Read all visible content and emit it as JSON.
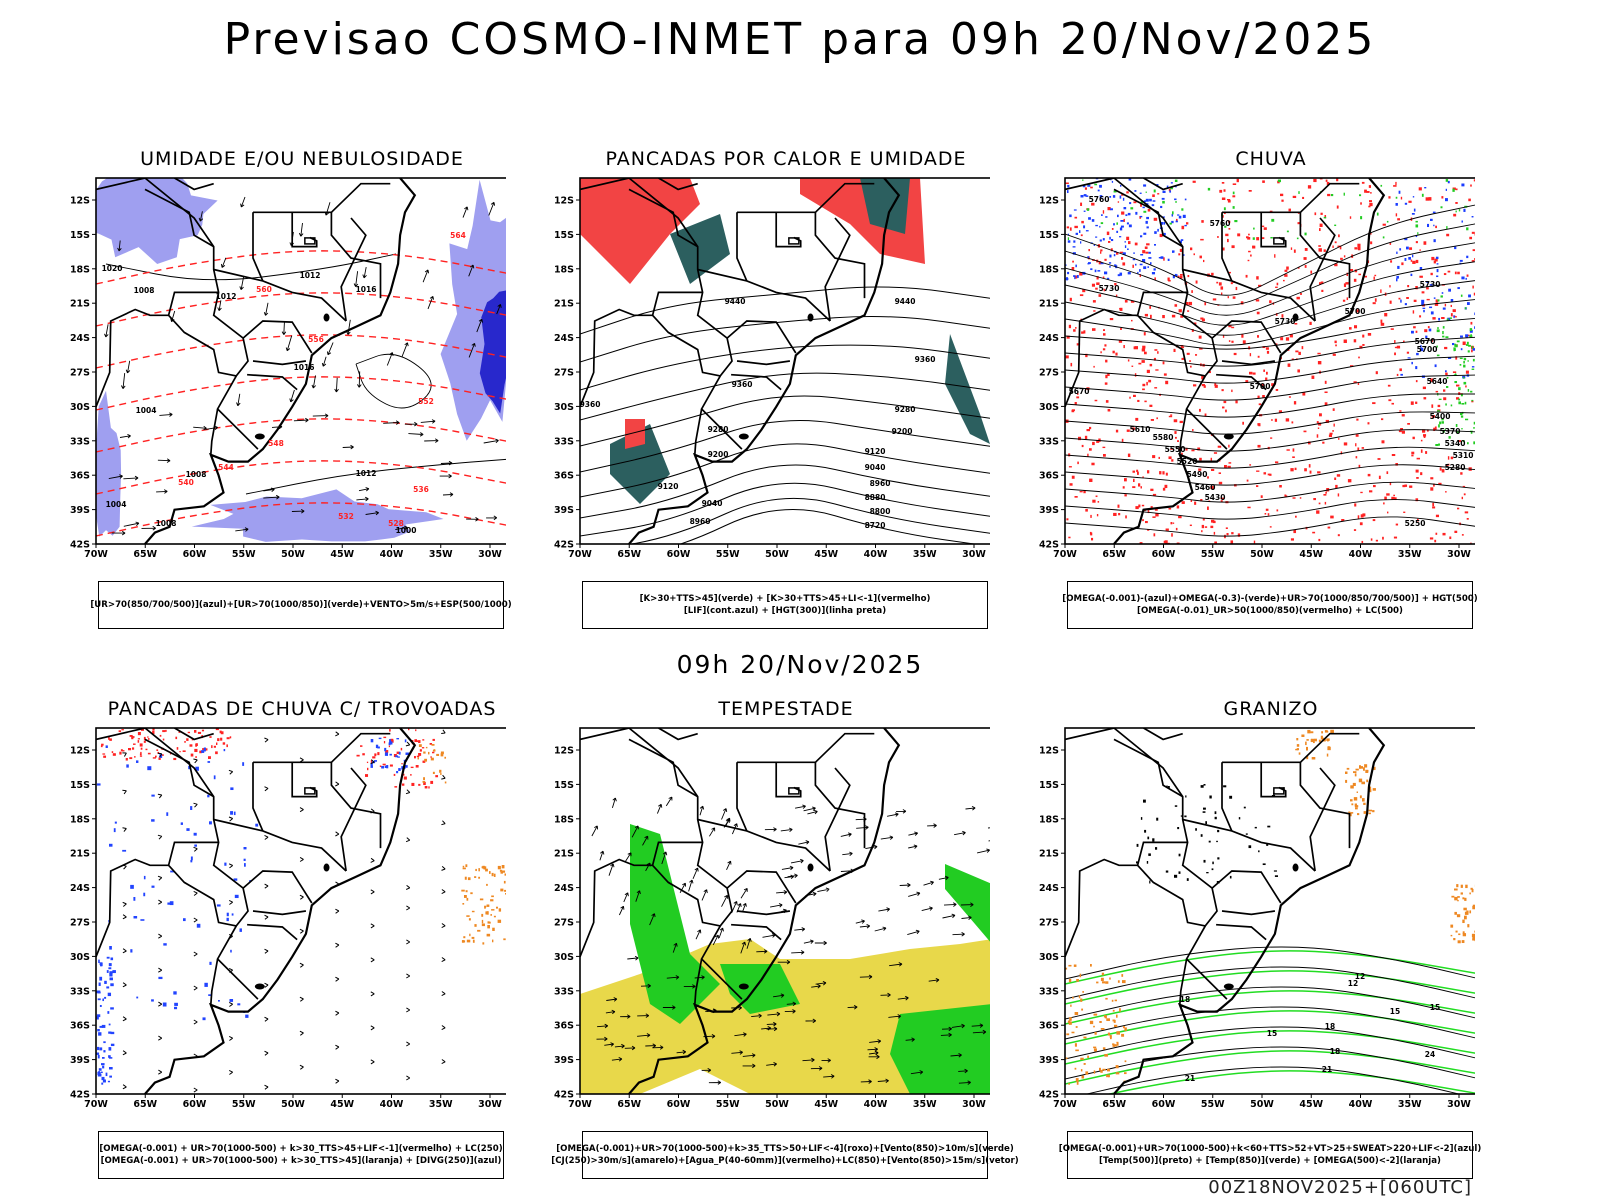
{
  "header": {
    "title": "Previsao COSMO-INMET  para 09h 20/Nov/2025",
    "mid_time": "09h 20/Nov/2025",
    "run_stamp": "00Z18NOV2025+[060UTC]"
  },
  "axes": {
    "lat_labels": [
      "12S",
      "15S",
      "18S",
      "21S",
      "24S",
      "27S",
      "30S",
      "33S",
      "36S",
      "39S",
      "42S"
    ],
    "lon_labels": [
      "70W",
      "65W",
      "60W",
      "55W",
      "50W",
      "45W",
      "40W",
      "35W",
      "30W"
    ]
  },
  "panels": [
    {
      "id": "umidade",
      "title": "UMIDADE E/OU NEBULOSIDADE",
      "legend": [
        "[UR>70(850/700/500)](azul)+[UR>70(1000/850)](verde)+VENTO>5m/s+ESP(500/1000)"
      ],
      "contour_labels": [
        "1012",
        "1012",
        "1016",
        "1016",
        "1008",
        "1004",
        "1020",
        "1012",
        "1008",
        "1008",
        "1004",
        "1000",
        "564",
        "560",
        "556",
        "552",
        "548",
        "544",
        "540",
        "536",
        "532",
        "528"
      ],
      "colors": {
        "humid_high": "#9f9ff0",
        "humid_low": "#22dd22",
        "isobar": "#000000",
        "thickness": "#ff2222",
        "deep": "#2828cc"
      }
    },
    {
      "id": "pancadas_calor",
      "title": "PANCADAS POR CALOR E UMIDADE",
      "legend": [
        "[K>30+TTS>45](verde) + [K>30+TTS>45+LI<-1](vermelho)",
        "[LIF](cont.azul) + [HGT(300)](linha preta)"
      ],
      "contour_labels": [
        "9440",
        "9440",
        "9360",
        "9360",
        "9280",
        "9280",
        "9200",
        "9200",
        "9120",
        "9040",
        "8960",
        "8880",
        "8800",
        "8720",
        "9120",
        "9040",
        "8960",
        "9360"
      ],
      "colors": {
        "unstable": "#f24444",
        "humid": "#2c5f5f",
        "contour": "#000000"
      }
    },
    {
      "id": "chuva",
      "title": "CHUVA",
      "legend": [
        "[OMEGA(-0.001)-(azul)+OMEGA(-0.3)-(verde)+UR>70(1000/850/700/500)] + HGT(500)",
        "[OMEGA(-0.01)_UR>50(1000/850)(vermelho) + LC(500)"
      ],
      "contour_labels": [
        "5760",
        "5760",
        "5730",
        "5730",
        "5700",
        "5700",
        "5670",
        "5640",
        "5610",
        "5580",
        "5550",
        "5520",
        "5490",
        "5460",
        "5430",
        "5400",
        "5370",
        "5340",
        "5310",
        "5280",
        "5250",
        "5730",
        "5700",
        "5670"
      ],
      "colors": {
        "blue": "#1a3cff",
        "green": "#22cc22",
        "red": "#ff2222",
        "contour": "#000000"
      }
    },
    {
      "id": "trovoadas",
      "title": "PANCADAS DE CHUVA C/ TROVOADAS",
      "legend": [
        "[OMEGA(-0.001) + UR>70(1000-500) + k>30_TTS>45+LIF<-1](vermelho) + LC(250)",
        "[OMEGA(-0.001) + UR>70(1000-500) + k>30_TTS>45](laranja) + [DIVG(250)](azul)"
      ],
      "contour_labels": [],
      "colors": {
        "red": "#ff2222",
        "orange": "#ee8822",
        "blue": "#2244ff",
        "stream": "#000000"
      }
    },
    {
      "id": "tempestade",
      "title": "TEMPESTADE",
      "legend": [
        "[OMEGA(-0.001)+UR>70(1000-500)+k>35_TTS>50+LIF<-4](roxo)+[Vento(850)>10m/s](verde)",
        "[CJ(250)>30m/s](amarelo)+[Agua_P(40-60mm)](vermelho)+LC(850)+[Vento(850)>15m/s](vetor)"
      ],
      "contour_labels": [],
      "colors": {
        "yellow": "#e8d84a",
        "green": "#22cc22",
        "red": "#ff4444",
        "vector": "#000000"
      }
    },
    {
      "id": "granizo",
      "title": "GRANIZO",
      "legend": [
        "[OMEGA(-0.001)+UR>70(1000-500)+k<60+TTS>52+VT>25+SWEAT>220+LIF<-2](azul)",
        "[Temp(500)](preto) + [Temp(850)](verde) + [OMEGA(500)<-2](laranja)"
      ],
      "contour_labels": [
        "12",
        "15",
        "18",
        "15",
        "18",
        "21",
        "21",
        "24",
        "12",
        "15",
        "18"
      ],
      "colors": {
        "green": "#22dd22",
        "orange": "#ee8822",
        "blue": "#2244ff",
        "contour": "#000000"
      }
    }
  ]
}
